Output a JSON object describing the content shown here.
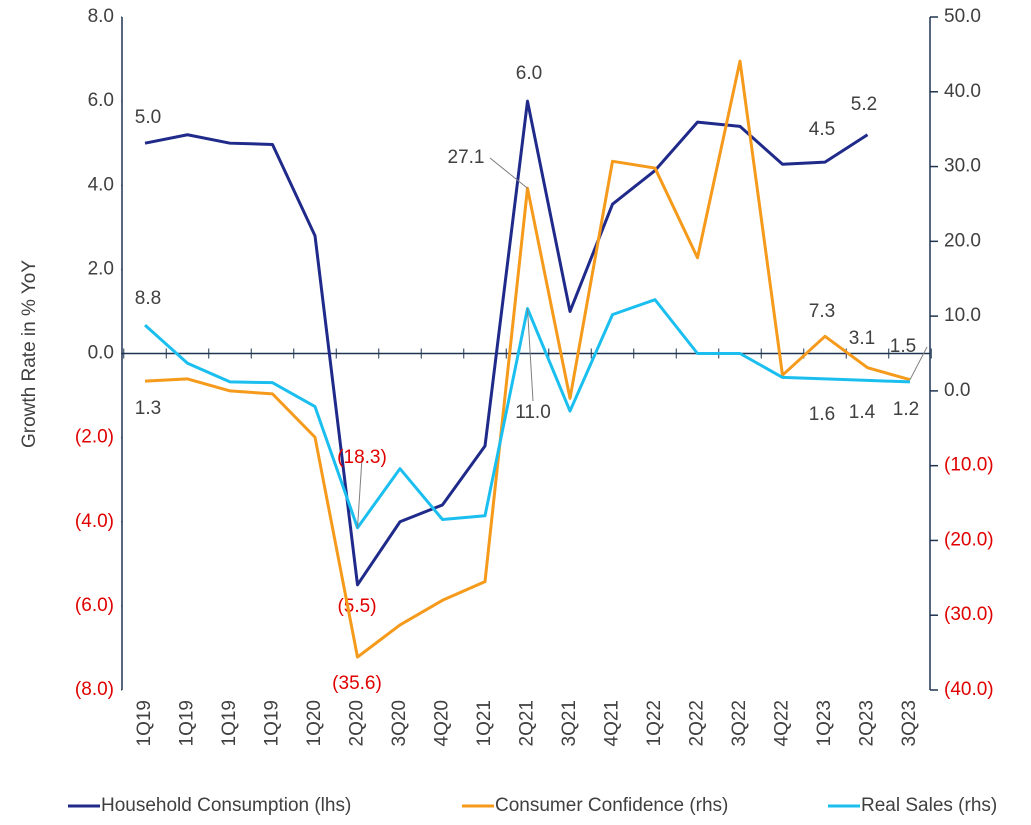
{
  "chart_data": {
    "type": "line",
    "y_axis_label": "Growth Rate in % YoY",
    "categories": [
      "1Q19",
      "1Q19",
      "1Q19",
      "1Q19",
      "1Q20",
      "2Q20",
      "3Q20",
      "4Q20",
      "1Q21",
      "2Q21",
      "3Q21",
      "4Q21",
      "1Q22",
      "2Q22",
      "3Q22",
      "4Q22",
      "1Q23",
      "2Q23",
      "3Q23"
    ],
    "ylim": [
      -8,
      8
    ],
    "yticks": [
      {
        "value": 8,
        "label": "8.0"
      },
      {
        "value": 6,
        "label": "6.0"
      },
      {
        "value": 4,
        "label": "4.0"
      },
      {
        "value": 2,
        "label": "2.0"
      },
      {
        "value": 0,
        "label": "0.0"
      },
      {
        "value": -2,
        "label": "(2.0)"
      },
      {
        "value": -4,
        "label": "(4.0)"
      },
      {
        "value": -6,
        "label": "(6.0)"
      },
      {
        "value": -8,
        "label": "(8.0)"
      }
    ],
    "y2lim": [
      -40,
      50
    ],
    "y2ticks": [
      {
        "value": 50,
        "label": "50.0"
      },
      {
        "value": 40,
        "label": "40.0"
      },
      {
        "value": 30,
        "label": "30.0"
      },
      {
        "value": 20,
        "label": "20.0"
      },
      {
        "value": 10,
        "label": "10.0"
      },
      {
        "value": 0,
        "label": "0.0"
      },
      {
        "value": -10,
        "label": "(10.0)"
      },
      {
        "value": -20,
        "label": "(20.0)"
      },
      {
        "value": -30,
        "label": "(30.0)"
      },
      {
        "value": -40,
        "label": "(40.0)"
      }
    ],
    "negative_label_color": "#e00000",
    "series": [
      {
        "name": "Household Consumption (lhs)",
        "color": "#1f2a8a",
        "values": [
          5.0,
          5.2,
          5.0,
          4.97,
          2.8,
          -5.5,
          -4.0,
          -3.6,
          -2.2,
          6.0,
          1.0,
          3.55,
          4.35,
          5.5,
          5.4,
          4.5,
          4.55,
          5.2,
          null
        ],
        "value_labels": [
          "5.0",
          null,
          null,
          null,
          null,
          "(5.5)",
          null,
          null,
          null,
          "6.0",
          null,
          null,
          null,
          null,
          null,
          "4.5",
          null,
          "5.2",
          null
        ]
      },
      {
        "name": "Consumer Confidence (rhs)",
        "color": "#f59a1b",
        "axis": "y2",
        "values": [
          1.3,
          1.6,
          0.0,
          -0.4,
          -6.2,
          -35.6,
          -31.3,
          -28.0,
          -25.5,
          27.1,
          -1.0,
          30.7,
          29.8,
          17.8,
          44.1,
          2.1,
          7.3,
          3.1,
          1.5
        ],
        "value_labels": [
          "1.3",
          null,
          null,
          null,
          null,
          "(35.6)",
          null,
          null,
          null,
          "27.1",
          null,
          null,
          null,
          null,
          null,
          null,
          "7.3",
          "3.1",
          "1.5"
        ]
      },
      {
        "name": "Real Sales (rhs)",
        "color": "#1bbfef",
        "axis": "y2",
        "values": [
          8.8,
          3.7,
          1.2,
          1.1,
          -2.1,
          -18.3,
          -10.4,
          -17.2,
          -16.7,
          11.0,
          -2.7,
          10.2,
          12.2,
          5.0,
          5.0,
          1.8,
          1.6,
          1.4,
          1.2
        ],
        "value_labels": [
          "8.8",
          null,
          null,
          null,
          null,
          "(18.3)",
          null,
          null,
          null,
          "11.0",
          null,
          null,
          null,
          null,
          null,
          null,
          "1.6",
          "1.4",
          "1.2"
        ]
      }
    ]
  }
}
